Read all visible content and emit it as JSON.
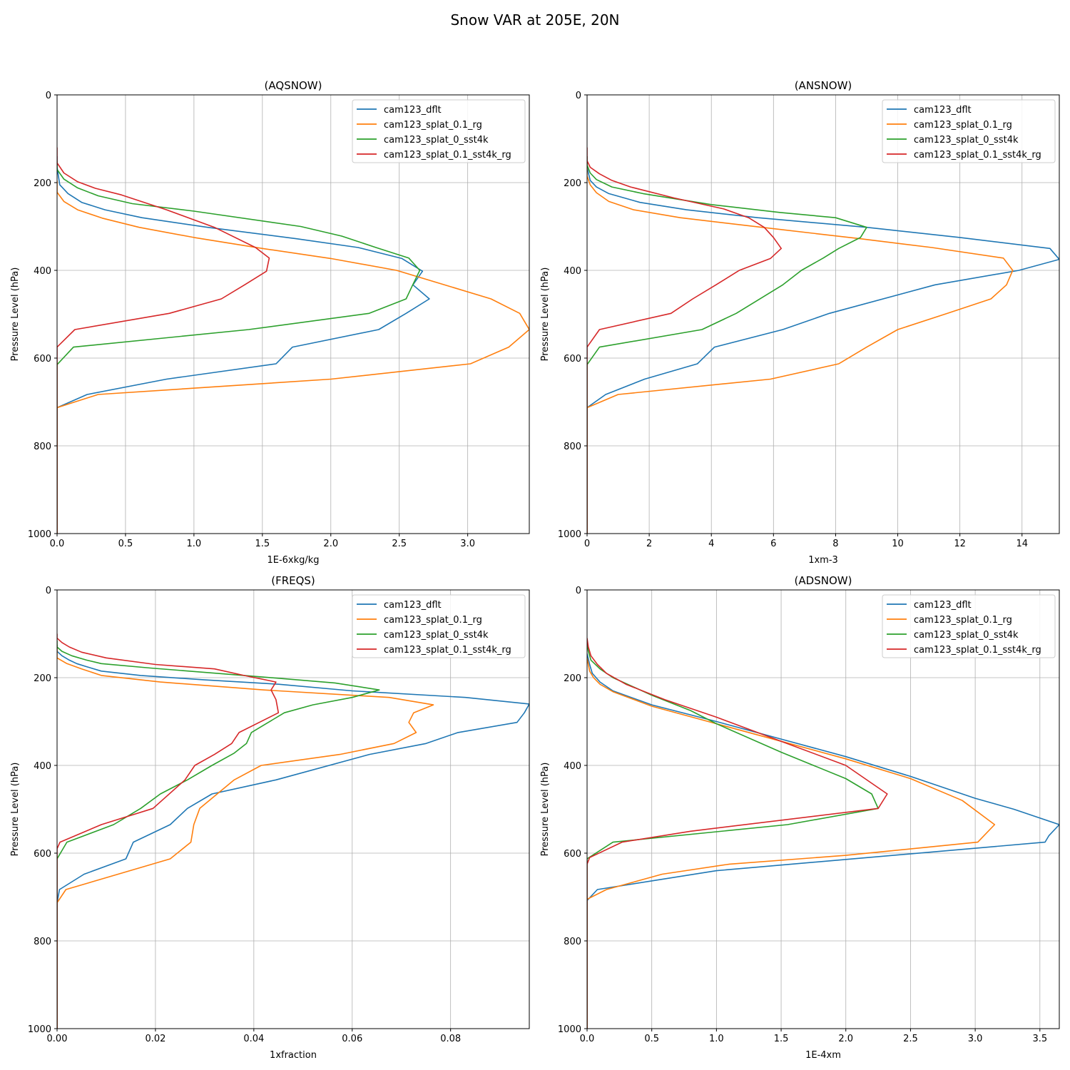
{
  "figure": {
    "title": "Snow VAR at 205E, 20N"
  },
  "colors": {
    "blue": "#1f77b4",
    "orange": "#ff7f0e",
    "green": "#2ca02c",
    "red": "#d62728",
    "grid": "#b0b0b0"
  },
  "chart_data": [
    {
      "type": "line",
      "title": "(AQSNOW)",
      "xlabel": "1E-6xkg/kg",
      "ylabel": "Pressure Level (hPa)",
      "xlim": [
        0,
        3.45
      ],
      "ylim": [
        1000,
        0
      ],
      "xticks": [
        0,
        0.5,
        1.0,
        1.5,
        2.0,
        2.5,
        3.0
      ],
      "xtick_labels": [
        "0.0",
        "0.5",
        "1.0",
        "1.5",
        "2.0",
        "2.5",
        "3.0"
      ],
      "yticks": [
        0,
        200,
        400,
        600,
        800,
        1000
      ],
      "ytick_labels": [
        "0",
        "200",
        "400",
        "600",
        "800",
        "1000"
      ],
      "grid": true,
      "legend": "upper right",
      "series": [
        {
          "name": "cam123_dflt",
          "color": "#1f77b4",
          "x": [
            0,
            0,
            0.02,
            0.08,
            0.18,
            0.35,
            0.62,
            1.1,
            1.75,
            2.2,
            2.52,
            2.67,
            2.6,
            2.72,
            2.55,
            2.35,
            1.72,
            1.6,
            0.8,
            0.22,
            0,
            0,
            0
          ],
          "y": [
            140,
            165,
            205,
            225,
            245,
            262,
            280,
            302,
            328,
            348,
            373,
            402,
            433,
            465,
            498,
            535,
            575,
            613,
            648,
            683,
            713,
            730,
            1000
          ]
        },
        {
          "name": "cam123_splat_0.1_rg",
          "color": "#ff7f0e",
          "x": [
            0,
            0,
            0.05,
            0.15,
            0.33,
            0.6,
            1.0,
            1.5,
            2.0,
            2.48,
            3.17,
            3.38,
            3.45,
            3.3,
            3.02,
            2.0,
            0.3,
            0,
            0,
            0
          ],
          "y": [
            195,
            222,
            243,
            262,
            281,
            302,
            325,
            350,
            373,
            400,
            465,
            498,
            535,
            575,
            613,
            648,
            683,
            713,
            730,
            1000
          ]
        },
        {
          "name": "cam123_splat_0_sst4k",
          "color": "#2ca02c",
          "x": [
            0,
            0,
            0.05,
            0.15,
            0.3,
            0.55,
            1.0,
            1.78,
            2.08,
            2.33,
            2.57,
            2.65,
            2.6,
            2.55,
            2.28,
            1.4,
            0.12,
            0,
            0,
            0
          ],
          "y": [
            150,
            170,
            192,
            212,
            230,
            248,
            265,
            300,
            322,
            348,
            372,
            400,
            432,
            465,
            498,
            535,
            575,
            615,
            640,
            1000
          ]
        },
        {
          "name": "cam123_splat_0.1_sst4k_rg",
          "color": "#d62728",
          "x": [
            0,
            0,
            0.05,
            0.15,
            0.28,
            0.47,
            0.8,
            1.15,
            1.45,
            1.55,
            1.53,
            1.37,
            1.2,
            0.82,
            0.13,
            0,
            0,
            0
          ],
          "y": [
            120,
            155,
            178,
            198,
            213,
            228,
            262,
            302,
            348,
            372,
            402,
            433,
            465,
            498,
            535,
            575,
            610,
            1000
          ]
        }
      ]
    },
    {
      "type": "line",
      "title": "(ANSNOW)",
      "xlabel": "1xm-3",
      "ylabel": "Pressure Level (hPa)",
      "xlim": [
        0,
        15.2
      ],
      "ylim": [
        1000,
        0
      ],
      "xticks": [
        0,
        2,
        4,
        6,
        8,
        10,
        12,
        14
      ],
      "xtick_labels": [
        "0",
        "2",
        "4",
        "6",
        "8",
        "10",
        "12",
        "14"
      ],
      "yticks": [
        0,
        200,
        400,
        600,
        800,
        1000
      ],
      "ytick_labels": [
        "0",
        "200",
        "400",
        "600",
        "800",
        "1000"
      ],
      "grid": true,
      "legend": "upper right",
      "series": [
        {
          "name": "cam123_dflt",
          "color": "#1f77b4",
          "x": [
            0,
            0,
            0.1,
            0.3,
            0.7,
            1.7,
            3.2,
            5.5,
            9.0,
            12.0,
            14.9,
            15.2,
            13.9,
            11.2,
            7.8,
            6.3,
            4.1,
            3.55,
            1.85,
            0.6,
            0,
            0,
            0
          ],
          "y": [
            140,
            165,
            195,
            210,
            225,
            245,
            262,
            280,
            302,
            325,
            350,
            375,
            400,
            433,
            498,
            535,
            575,
            613,
            648,
            683,
            713,
            730,
            1000
          ]
        },
        {
          "name": "cam123_splat_0.1_rg",
          "color": "#ff7f0e",
          "x": [
            0,
            0,
            0.1,
            0.3,
            0.7,
            1.5,
            3.0,
            6.0,
            8.8,
            11.1,
            13.4,
            13.7,
            13.5,
            13.0,
            11.6,
            10.0,
            9.0,
            8.1,
            5.9,
            1.0,
            0,
            0,
            0
          ],
          "y": [
            150,
            185,
            205,
            223,
            243,
            262,
            280,
            305,
            328,
            348,
            372,
            400,
            433,
            465,
            498,
            535,
            575,
            613,
            648,
            683,
            713,
            730,
            1000
          ]
        },
        {
          "name": "cam123_splat_0_sst4k",
          "color": "#2ca02c",
          "x": [
            0,
            0,
            0.1,
            0.3,
            0.8,
            1.8,
            4.0,
            6.2,
            8.0,
            9.0,
            8.8,
            8.1,
            7.6,
            6.9,
            6.3,
            4.8,
            3.7,
            0.4,
            0,
            0,
            0
          ],
          "y": [
            140,
            160,
            178,
            193,
            210,
            225,
            250,
            268,
            280,
            302,
            325,
            350,
            372,
            400,
            433,
            498,
            535,
            575,
            615,
            640,
            1000
          ]
        },
        {
          "name": "cam123_splat_0.1_sst4k_rg",
          "color": "#d62728",
          "x": [
            0,
            0,
            0.1,
            0.4,
            0.8,
            1.4,
            2.8,
            4.4,
            5.2,
            5.7,
            6.0,
            6.25,
            5.9,
            4.9,
            4.15,
            3.4,
            2.7,
            0.4,
            0,
            0,
            0
          ],
          "y": [
            120,
            150,
            165,
            180,
            195,
            210,
            235,
            260,
            280,
            302,
            325,
            350,
            373,
            400,
            433,
            465,
            498,
            535,
            575,
            605,
            1000
          ]
        }
      ]
    },
    {
      "type": "line",
      "title": "(FREQS)",
      "xlabel": "1xfraction",
      "ylabel": "Pressure Level (hPa)",
      "xlim": [
        0,
        0.096
      ],
      "ylim": [
        1000,
        0
      ],
      "xticks": [
        0,
        0.02,
        0.04,
        0.06,
        0.08
      ],
      "xtick_labels": [
        "0.00",
        "0.02",
        "0.04",
        "0.06",
        "0.08"
      ],
      "yticks": [
        0,
        200,
        400,
        600,
        800,
        1000
      ],
      "ytick_labels": [
        "0",
        "200",
        "400",
        "600",
        "800",
        "1000"
      ],
      "grid": true,
      "legend": "upper right",
      "series": [
        {
          "name": "cam123_dflt",
          "color": "#1f77b4",
          "x": [
            0,
            0,
            0.001,
            0.0025,
            0.004,
            0.006,
            0.009,
            0.017,
            0.03,
            0.045,
            0.06,
            0.083,
            0.096,
            0.095,
            0.0935,
            0.0815,
            0.075,
            0.0635,
            0.0445,
            0.0315,
            0.0265,
            0.023,
            0.0155,
            0.014,
            0.0055,
            0.0005,
            0,
            0
          ],
          "y": [
            125,
            140,
            150,
            160,
            168,
            175,
            185,
            195,
            205,
            215,
            230,
            245,
            260,
            280,
            302,
            325,
            350,
            375,
            433,
            465,
            498,
            535,
            575,
            613,
            648,
            683,
            713,
            1000
          ]
        },
        {
          "name": "cam123_splat_0.1_rg",
          "color": "#ff7f0e",
          "x": [
            0,
            0,
            0.002,
            0.005,
            0.009,
            0.021,
            0.042,
            0.0675,
            0.0765,
            0.0725,
            0.0715,
            0.073,
            0.0685,
            0.0575,
            0.0415,
            0.036,
            0.029,
            0.0278,
            0.0272,
            0.023,
            0.0018,
            0,
            0
          ],
          "y": [
            125,
            155,
            168,
            180,
            195,
            210,
            228,
            245,
            262,
            280,
            302,
            325,
            350,
            375,
            400,
            433,
            498,
            535,
            575,
            613,
            683,
            713,
            1000
          ]
        },
        {
          "name": "cam123_splat_0_sst4k",
          "color": "#2ca02c",
          "x": [
            0,
            0,
            0.001,
            0.003,
            0.006,
            0.009,
            0.019,
            0.038,
            0.0565,
            0.0655,
            0.06,
            0.052,
            0.0462,
            0.0395,
            0.0385,
            0.036,
            0.0315,
            0.0265,
            0.021,
            0.017,
            0.0115,
            0.002,
            0,
            0
          ],
          "y": [
            115,
            130,
            140,
            150,
            160,
            168,
            178,
            195,
            212,
            228,
            245,
            262,
            280,
            325,
            350,
            372,
            400,
            433,
            465,
            498,
            535,
            575,
            613,
            1000
          ]
        },
        {
          "name": "cam123_splat_0.1_sst4k_rg",
          "color": "#d62728",
          "x": [
            0,
            0,
            0.001,
            0.0025,
            0.005,
            0.01,
            0.02,
            0.032,
            0.038,
            0.0445,
            0.0435,
            0.0445,
            0.045,
            0.037,
            0.0355,
            0.032,
            0.028,
            0.026,
            0.0195,
            0.009,
            0.0006,
            0,
            0
          ],
          "y": [
            100,
            110,
            120,
            130,
            142,
            155,
            170,
            180,
            195,
            210,
            228,
            250,
            280,
            325,
            350,
            375,
            400,
            433,
            498,
            535,
            575,
            590,
            1000
          ]
        }
      ]
    },
    {
      "type": "line",
      "title": "(ADSNOW)",
      "xlabel": "1E-4xm",
      "ylabel": "Pressure Level (hPa)",
      "xlim": [
        0,
        3.65
      ],
      "ylim": [
        1000,
        0
      ],
      "xticks": [
        0,
        0.5,
        1.0,
        1.5,
        2.0,
        2.5,
        3.0,
        3.5
      ],
      "xtick_labels": [
        "0.0",
        "0.5",
        "1.0",
        "1.5",
        "2.0",
        "2.5",
        "3.0",
        "3.5"
      ],
      "yticks": [
        0,
        200,
        400,
        600,
        800,
        1000
      ],
      "ytick_labels": [
        "0",
        "200",
        "400",
        "600",
        "800",
        "1000"
      ],
      "grid": true,
      "legend": "upper right",
      "series": [
        {
          "name": "cam123_dflt",
          "color": "#1f77b4",
          "x": [
            0,
            0.02,
            0.04,
            0.07,
            0.1,
            0.2,
            0.5,
            1.0,
            1.5,
            2.0,
            2.5,
            3.0,
            3.3,
            3.65,
            3.57,
            3.54,
            1.0,
            0.08,
            0,
            0,
            0
          ],
          "y": [
            145,
            170,
            190,
            200,
            210,
            230,
            262,
            300,
            340,
            380,
            425,
            475,
            500,
            535,
            560,
            575,
            640,
            683,
            708,
            725,
            1000
          ]
        },
        {
          "name": "cam123_splat_0.1_rg",
          "color": "#ff7f0e",
          "x": [
            0,
            0.02,
            0.05,
            0.1,
            0.2,
            0.5,
            1.0,
            1.5,
            2.0,
            2.5,
            2.9,
            3.15,
            3.02,
            2.0,
            1.1,
            0.58,
            0.15,
            0,
            0,
            0
          ],
          "y": [
            155,
            185,
            200,
            215,
            232,
            265,
            305,
            345,
            385,
            430,
            480,
            535,
            575,
            605,
            625,
            648,
            683,
            705,
            725,
            1000
          ]
        },
        {
          "name": "cam123_splat_0_sst4k",
          "color": "#2ca02c",
          "x": [
            0,
            0.01,
            0.03,
            0.1,
            0.2,
            0.5,
            0.8,
            1.0,
            1.5,
            2.0,
            2.2,
            2.25,
            1.55,
            0.2,
            0,
            0,
            0
          ],
          "y": [
            120,
            140,
            160,
            180,
            200,
            240,
            275,
            305,
            370,
            430,
            465,
            498,
            535,
            575,
            613,
            640,
            1000
          ]
        },
        {
          "name": "cam123_splat_0.1_sst4k_rg",
          "color": "#d62728",
          "x": [
            0,
            0.01,
            0.03,
            0.08,
            0.15,
            0.3,
            0.6,
            1.0,
            1.5,
            2.0,
            2.32,
            2.25,
            0.8,
            0.27,
            0.02,
            0,
            0
          ],
          "y": [
            110,
            130,
            150,
            170,
            190,
            215,
            250,
            290,
            345,
            400,
            465,
            498,
            550,
            575,
            610,
            625,
            1000
          ]
        }
      ]
    }
  ]
}
